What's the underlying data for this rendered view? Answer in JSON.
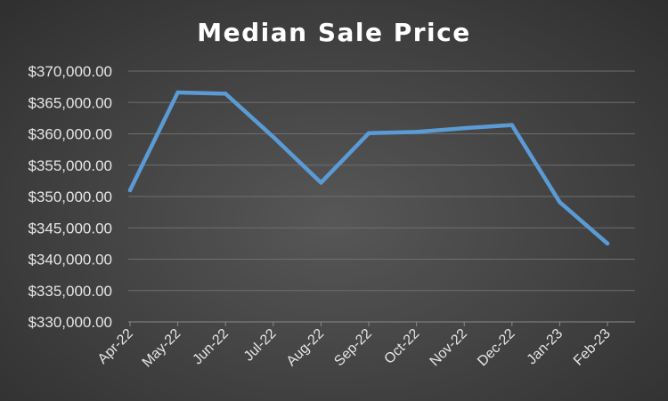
{
  "chart_data": {
    "type": "line",
    "title": "Median Sale Price",
    "xlabel": "",
    "ylabel": "",
    "categories": [
      "Apr-22",
      "May-22",
      "Jun-22",
      "Jul-22",
      "Aug-22",
      "Sep-22",
      "Oct-22",
      "Nov-22",
      "Dec-22",
      "Jan-23",
      "Feb-23"
    ],
    "series": [
      {
        "values": [
          351000,
          366600,
          366400,
          359500,
          352200,
          360100,
          360300,
          360900,
          361400,
          349100,
          342500
        ],
        "color": "#5b9bd5"
      }
    ],
    "ylim": [
      330000,
      370000
    ],
    "y_tick_values": [
      330000,
      335000,
      340000,
      345000,
      350000,
      355000,
      360000,
      365000,
      370000
    ],
    "y_tick_labels": [
      "$330,000.00",
      "$335,000.00",
      "$340,000.00",
      "$345,000.00",
      "$350,000.00",
      "$355,000.00",
      "$360,000.00",
      "$365,000.00",
      "$370,000.00"
    ],
    "grid": true,
    "legend": "none"
  }
}
